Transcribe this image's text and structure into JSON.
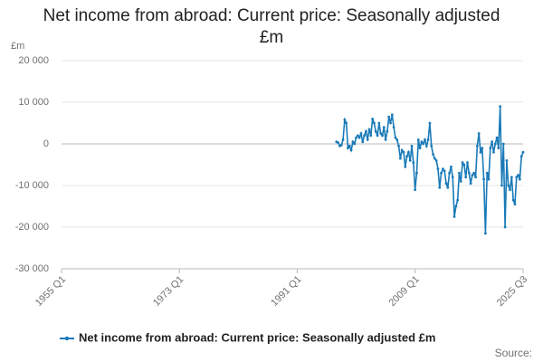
{
  "chart_data": {
    "type": "line",
    "title": "Net income from abroad: Current price: Seasonally adjusted £m",
    "y_unit": "£m",
    "source": "Source:",
    "xlim": [
      1955,
      2025.5
    ],
    "xticks": [
      {
        "value": 1955,
        "label": "1955 Q1"
      },
      {
        "value": 1973,
        "label": "1973 Q1"
      },
      {
        "value": 1991,
        "label": "1991 Q1"
      },
      {
        "value": 2009,
        "label": "2009 Q1"
      },
      {
        "value": 2025.5,
        "label": "2025 Q3"
      }
    ],
    "ylim": [
      -30000,
      20000
    ],
    "yticks": [
      {
        "value": -30000,
        "label": "-30 000"
      },
      {
        "value": -20000,
        "label": "-20 000"
      },
      {
        "value": -10000,
        "label": "-10 000"
      },
      0,
      {
        "value": 10000,
        "label": "10 000"
      },
      {
        "value": 20000,
        "label": "20 000"
      }
    ],
    "grid": true,
    "x": [
      1997,
      1997.25,
      1997.5,
      1997.75,
      1998,
      1998.25,
      1998.5,
      1998.75,
      1999,
      1999.25,
      1999.5,
      1999.75,
      2000,
      2000.25,
      2000.5,
      2000.75,
      2001,
      2001.25,
      2001.5,
      2001.75,
      2002,
      2002.25,
      2002.5,
      2002.75,
      2003,
      2003.25,
      2003.5,
      2003.75,
      2004,
      2004.25,
      2004.5,
      2004.75,
      2005,
      2005.25,
      2005.5,
      2005.75,
      2006,
      2006.25,
      2006.5,
      2006.75,
      2007,
      2007.25,
      2007.5,
      2007.75,
      2008,
      2008.25,
      2008.5,
      2008.75,
      2009,
      2009.25,
      2009.5,
      2009.75,
      2010,
      2010.25,
      2010.5,
      2010.75,
      2011,
      2011.25,
      2011.5,
      2011.75,
      2012,
      2012.25,
      2012.5,
      2012.75,
      2013,
      2013.25,
      2013.5,
      2013.75,
      2014,
      2014.25,
      2014.5,
      2014.75,
      2015,
      2015.25,
      2015.5,
      2015.75,
      2016,
      2016.25,
      2016.5,
      2016.75,
      2017,
      2017.25,
      2017.5,
      2017.75,
      2018,
      2018.25,
      2018.5,
      2018.75,
      2019,
      2019.25,
      2019.5,
      2019.75,
      2020,
      2020.25,
      2020.5,
      2020.75,
      2021,
      2021.25,
      2021.5,
      2021.75,
      2022,
      2022.25,
      2022.5,
      2022.75,
      2023,
      2023.25,
      2023.5,
      2023.75,
      2024,
      2024.25,
      2024.5,
      2024.75,
      2025,
      2025.25,
      2025.5
    ],
    "series": [
      {
        "name": "Net income from abroad: Current price: Seasonally adjusted £m",
        "color": "#1a7ab8",
        "values": [
          500,
          300,
          -500,
          -300,
          1000,
          5800,
          5000,
          -1000,
          -500,
          -1500,
          500,
          0,
          1500,
          2000,
          1500,
          2500,
          500,
          2000,
          3000,
          1000,
          3500,
          2000,
          6000,
          5000,
          3000,
          2000,
          5000,
          2500,
          2000,
          4000,
          1000,
          3000,
          6500,
          5000,
          7000,
          4000,
          1500,
          1000,
          -500,
          -3500,
          -1500,
          -2000,
          -5500,
          -3000,
          -2000,
          -4000,
          -500,
          -4500,
          -11000,
          -7000,
          1000,
          -1000,
          500,
          0,
          1000,
          -500,
          1000,
          5000,
          -500,
          -2500,
          -3500,
          -4000,
          -6000,
          -10500,
          -7000,
          -6000,
          -6500,
          -9500,
          -10500,
          -7000,
          -5500,
          -8000,
          -17500,
          -15000,
          -13500,
          -7000,
          -9000,
          -4500,
          -5000,
          -8000,
          -4500,
          -7000,
          -9500,
          -7500,
          -7000,
          -8000,
          -500,
          2500,
          -2000,
          -1000,
          -8500,
          -21500,
          -7000,
          -8500,
          -1000,
          500,
          -2000,
          0,
          1500,
          -1000,
          9000,
          -10000,
          0,
          -20000,
          -4000,
          -10000,
          -11000,
          -8000,
          -13500,
          -14500,
          -8000,
          -7500,
          -8500,
          -3000,
          -2000
        ]
      }
    ]
  }
}
